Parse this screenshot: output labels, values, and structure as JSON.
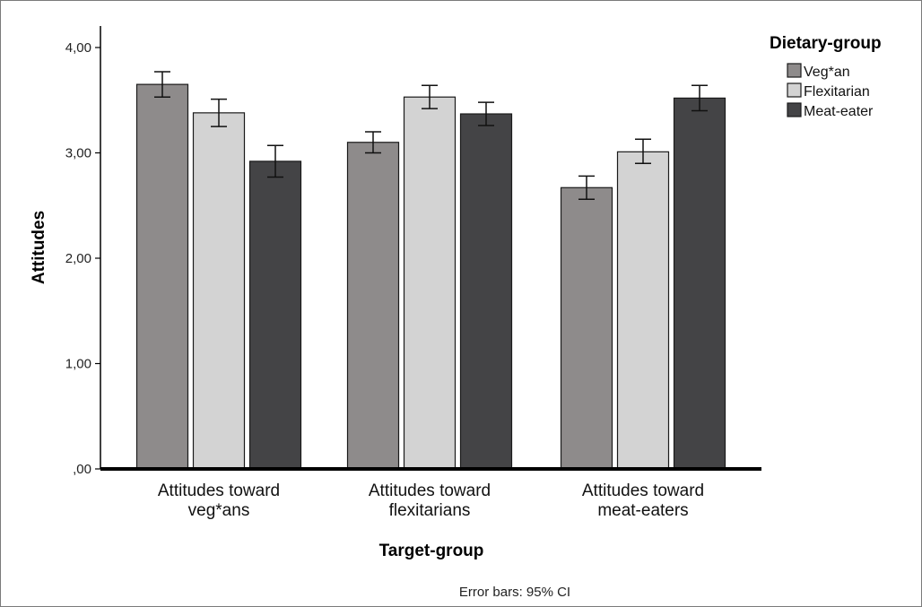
{
  "chart_data": {
    "type": "bar",
    "categories": [
      "Attitudes toward veg*ans",
      "Attitudes toward flexitarians",
      "Attitudes toward meat-eaters"
    ],
    "category_lines": [
      [
        "Attitudes toward",
        "veg*ans"
      ],
      [
        "Attitudes toward",
        "flexitarians"
      ],
      [
        "Attitudes toward",
        "meat-eaters"
      ]
    ],
    "series": [
      {
        "name": "Veg*an",
        "color": "#8e8b8b",
        "values": [
          3.65,
          3.1,
          2.67
        ],
        "ci_low": [
          3.53,
          3.0,
          2.56
        ],
        "ci_high": [
          3.77,
          3.2,
          2.78
        ]
      },
      {
        "name": "Flexitarian",
        "color": "#d3d3d3",
        "values": [
          3.38,
          3.53,
          3.01
        ],
        "ci_low": [
          3.25,
          3.42,
          2.9
        ],
        "ci_high": [
          3.51,
          3.64,
          3.13
        ]
      },
      {
        "name": "Meat-eater",
        "color": "#444446",
        "values": [
          2.92,
          3.37,
          3.52
        ],
        "ci_low": [
          2.77,
          3.26,
          3.4
        ],
        "ci_high": [
          3.07,
          3.48,
          3.64
        ]
      }
    ],
    "xlabel": "Target-group",
    "ylabel": "Attitudes",
    "ylim": [
      0,
      4
    ],
    "y_ticks": [
      0,
      1,
      2,
      3,
      4
    ],
    "y_tick_labels": [
      ",00",
      "1,00",
      "2,00",
      "3,00",
      "4,00"
    ],
    "legend_title": "Dietary-group",
    "legend_position": "top-right",
    "grid": false,
    "footnote": "Error bars: 95% CI"
  }
}
